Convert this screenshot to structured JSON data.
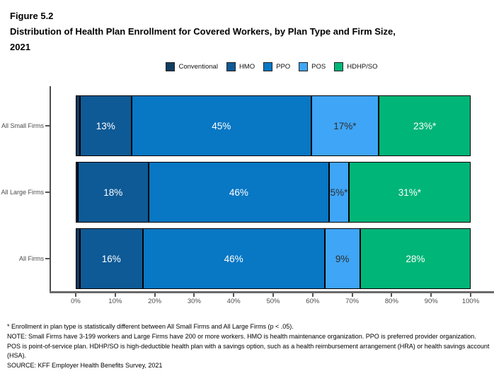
{
  "figure": {
    "label": "Figure 5.2",
    "title": "Distribution of Health Plan Enrollment for Covered Workers, by Plan Type and Firm Size,",
    "title_line2": "2021"
  },
  "chart_data": {
    "type": "bar",
    "orientation": "horizontal",
    "stacked": true,
    "unit": "percent",
    "title": "Distribution of Health Plan Enrollment for Covered Workers, by Plan Type and Firm Size, 2021",
    "categories": [
      "All Small Firms",
      "All Large Firms",
      "All Firms"
    ],
    "series": [
      {
        "name": "Conventional",
        "color": "#103c5f",
        "label_color": "#ffffff",
        "values": [
          1,
          0.5,
          1
        ],
        "labels": [
          "",
          "",
          ""
        ]
      },
      {
        "name": "HMO",
        "color": "#0e5a96",
        "label_color": "#ffffff",
        "values": [
          13,
          18,
          16
        ],
        "labels": [
          "13%",
          "18%",
          "16%"
        ]
      },
      {
        "name": "PPO",
        "color": "#0877c4",
        "label_color": "#ffffff",
        "values": [
          45,
          46,
          46
        ],
        "labels": [
          "45%",
          "46%",
          "46%"
        ]
      },
      {
        "name": "POS",
        "color": "#3fa5f6",
        "label_color": "#2d2d2d",
        "values": [
          17,
          5,
          9
        ],
        "labels": [
          "17%*",
          "5%*",
          "9%"
        ]
      },
      {
        "name": "HDHP/SO",
        "color": "#00b578",
        "label_color": "#ffffff",
        "values": [
          23,
          31,
          28
        ],
        "labels": [
          "23%*",
          "31%*",
          "28%"
        ]
      }
    ],
    "x_ticks": [
      "0%",
      "10%",
      "20%",
      "30%",
      "40%",
      "50%",
      "60%",
      "70%",
      "80%",
      "90%",
      "100%"
    ],
    "xlim": [
      0,
      100
    ],
    "grid": false,
    "legend_position": "top"
  },
  "footnotes": {
    "significance": "* Enrollment in plan type is statistically different between All Small Firms and All Large Firms (p < .05).",
    "note": "NOTE: Small Firms have 3-199 workers and Large Firms have 200 or more workers. HMO is health maintenance organization. PPO is preferred provider organization. POS is point-of-service plan. HDHP/SO is high-deductible health plan with a savings option, such as a health reimbursement arrangement (HRA) or health savings account (HSA).",
    "source": "SOURCE: KFF Employer Health Benefits Survey, 2021"
  }
}
